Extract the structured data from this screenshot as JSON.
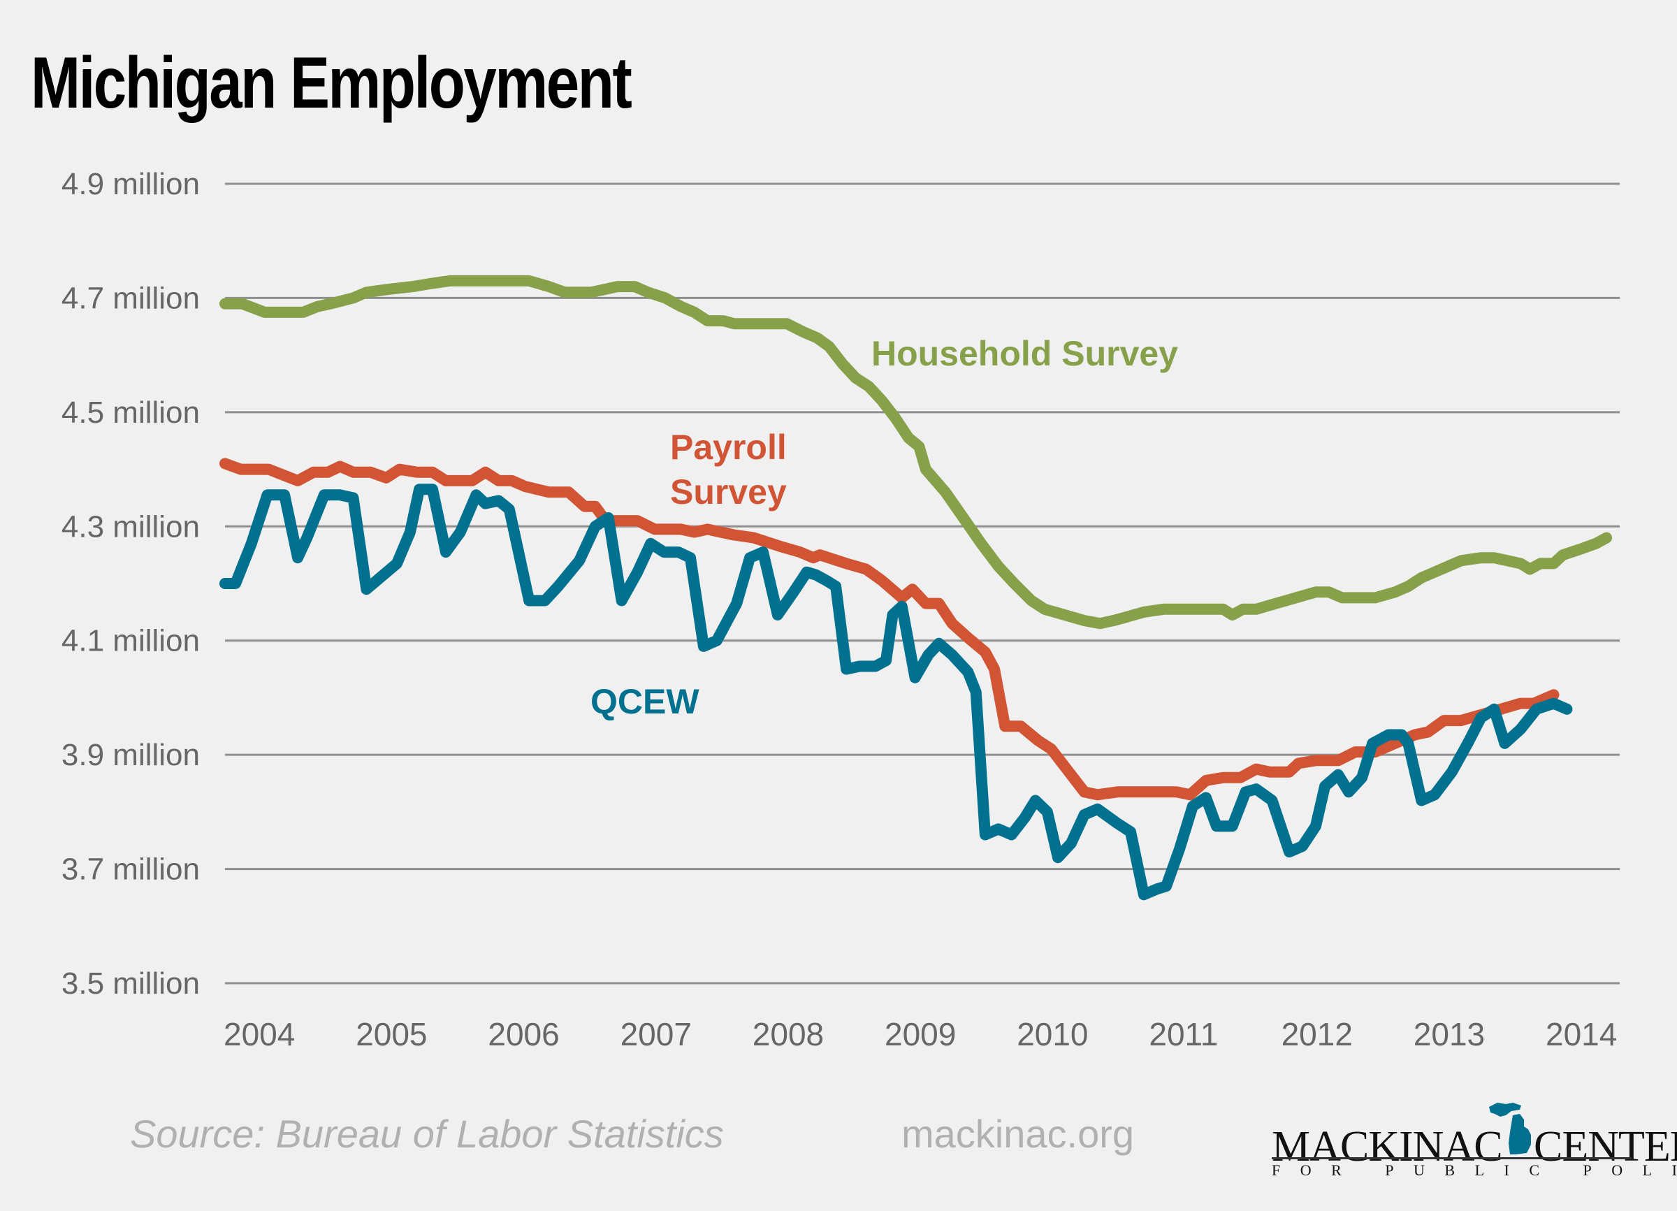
{
  "title": "Michigan Employment",
  "footer": {
    "source": "Source: Bureau of Labor Statistics",
    "site": "mackinac.org",
    "logo_line1_left": "MACKINAC",
    "logo_line1_right": "CENTER",
    "logo_line2": "FOR PUBLIC POLICY",
    "logo_icon": "michigan-map-icon"
  },
  "colors": {
    "background": "#f0f0f0",
    "household": "#87a14b",
    "payroll": "#d15435",
    "qcew": "#02718f",
    "grid": "#8f8f8f",
    "tick_text": "#666666",
    "footer_text": "#b0b0b0"
  },
  "chart_data": {
    "type": "line",
    "title": "Michigan Employment",
    "xlabel": "",
    "ylabel": "",
    "xlim": [
      2004,
      2014.55
    ],
    "ylim": [
      3.5,
      4.9
    ],
    "grid": true,
    "yticks": [
      4.9,
      4.7,
      4.5,
      4.3,
      4.1,
      3.9,
      3.7,
      3.5
    ],
    "ytick_labels": [
      "4.9 million",
      "4.7 million",
      "4.5 million",
      "4.3 million",
      "4.1 million",
      "3.9 million",
      "3.7 million",
      "3.5 million"
    ],
    "xticks": [
      2004,
      2005,
      2006,
      2007,
      2008,
      2009,
      2010,
      2011,
      2012,
      2013,
      2014
    ],
    "xtick_labels": [
      "2004",
      "2005",
      "2006",
      "2007",
      "2008",
      "2009",
      "2010",
      "2011",
      "2012",
      "2013",
      "2014"
    ],
    "legend": "inline-labels",
    "series": [
      {
        "name": "Household Survey",
        "label_lines": [
          "Household Survey"
        ],
        "color": "#87a14b",
        "points": [
          [
            2004.0,
            4.69
          ],
          [
            2004.13,
            4.69
          ],
          [
            2004.3,
            4.675
          ],
          [
            2004.59,
            4.675
          ],
          [
            2004.7,
            4.685
          ],
          [
            2004.8,
            4.69
          ],
          [
            2004.97,
            4.7
          ],
          [
            2005.07,
            4.71
          ],
          [
            2005.23,
            4.715
          ],
          [
            2005.42,
            4.72
          ],
          [
            2005.55,
            4.725
          ],
          [
            2005.7,
            4.73
          ],
          [
            2006.3,
            4.73
          ],
          [
            2006.45,
            4.72
          ],
          [
            2006.57,
            4.71
          ],
          [
            2006.77,
            4.71
          ],
          [
            2006.97,
            4.72
          ],
          [
            2007.1,
            4.72
          ],
          [
            2007.2,
            4.71
          ],
          [
            2007.33,
            4.7
          ],
          [
            2007.45,
            4.685
          ],
          [
            2007.55,
            4.675
          ],
          [
            2007.65,
            4.66
          ],
          [
            2007.77,
            4.66
          ],
          [
            2007.85,
            4.655
          ],
          [
            2008.25,
            4.655
          ],
          [
            2008.38,
            4.64
          ],
          [
            2008.48,
            4.63
          ],
          [
            2008.57,
            4.615
          ],
          [
            2008.67,
            4.585
          ],
          [
            2008.77,
            4.56
          ],
          [
            2008.87,
            4.545
          ],
          [
            2008.97,
            4.52
          ],
          [
            2009.07,
            4.49
          ],
          [
            2009.17,
            4.455
          ],
          [
            2009.25,
            4.44
          ],
          [
            2009.3,
            4.4
          ],
          [
            2009.45,
            4.36
          ],
          [
            2009.57,
            4.32
          ],
          [
            2009.72,
            4.27
          ],
          [
            2009.85,
            4.23
          ],
          [
            2009.97,
            4.2
          ],
          [
            2010.1,
            4.17
          ],
          [
            2010.2,
            4.155
          ],
          [
            2010.35,
            4.145
          ],
          [
            2010.5,
            4.135
          ],
          [
            2010.62,
            4.13
          ],
          [
            2010.72,
            4.135
          ],
          [
            2010.8,
            4.14
          ],
          [
            2010.95,
            4.15
          ],
          [
            2011.1,
            4.155
          ],
          [
            2011.4,
            4.155
          ],
          [
            2011.55,
            4.155
          ],
          [
            2011.62,
            4.145
          ],
          [
            2011.7,
            4.155
          ],
          [
            2011.8,
            4.155
          ],
          [
            2011.95,
            4.165
          ],
          [
            2012.1,
            4.175
          ],
          [
            2012.25,
            4.185
          ],
          [
            2012.35,
            4.185
          ],
          [
            2012.45,
            4.175
          ],
          [
            2012.7,
            4.175
          ],
          [
            2012.85,
            4.185
          ],
          [
            2012.95,
            4.195
          ],
          [
            2013.05,
            4.21
          ],
          [
            2013.15,
            4.22
          ],
          [
            2013.25,
            4.23
          ],
          [
            2013.35,
            4.24
          ],
          [
            2013.5,
            4.245
          ],
          [
            2013.6,
            4.245
          ],
          [
            2013.7,
            4.24
          ],
          [
            2013.8,
            4.235
          ],
          [
            2013.87,
            4.225
          ],
          [
            2013.95,
            4.235
          ],
          [
            2014.05,
            4.235
          ],
          [
            2014.12,
            4.25
          ],
          [
            2014.25,
            4.26
          ],
          [
            2014.37,
            4.27
          ],
          [
            2014.45,
            4.28
          ]
        ]
      },
      {
        "name": "Payroll Survey",
        "label_lines": [
          "Payroll",
          "Survey"
        ],
        "color": "#d15435",
        "points": [
          [
            2004.0,
            4.41
          ],
          [
            2004.12,
            4.4
          ],
          [
            2004.33,
            4.4
          ],
          [
            2004.55,
            4.38
          ],
          [
            2004.67,
            4.395
          ],
          [
            2004.78,
            4.395
          ],
          [
            2004.87,
            4.405
          ],
          [
            2004.97,
            4.395
          ],
          [
            2005.1,
            4.395
          ],
          [
            2005.22,
            4.385
          ],
          [
            2005.32,
            4.4
          ],
          [
            2005.45,
            4.395
          ],
          [
            2005.57,
            4.395
          ],
          [
            2005.67,
            4.38
          ],
          [
            2005.87,
            4.38
          ],
          [
            2005.97,
            4.395
          ],
          [
            2006.07,
            4.38
          ],
          [
            2006.17,
            4.38
          ],
          [
            2006.27,
            4.37
          ],
          [
            2006.45,
            4.36
          ],
          [
            2006.6,
            4.36
          ],
          [
            2006.72,
            4.335
          ],
          [
            2006.8,
            4.335
          ],
          [
            2006.88,
            4.31
          ],
          [
            2007.12,
            4.31
          ],
          [
            2007.25,
            4.295
          ],
          [
            2007.45,
            4.295
          ],
          [
            2007.55,
            4.29
          ],
          [
            2007.65,
            4.295
          ],
          [
            2007.75,
            4.29
          ],
          [
            2007.85,
            4.285
          ],
          [
            2008.0,
            4.28
          ],
          [
            2008.2,
            4.265
          ],
          [
            2008.35,
            4.255
          ],
          [
            2008.45,
            4.245
          ],
          [
            2008.5,
            4.25
          ],
          [
            2008.7,
            4.235
          ],
          [
            2008.85,
            4.225
          ],
          [
            2008.97,
            4.205
          ],
          [
            2009.12,
            4.175
          ],
          [
            2009.2,
            4.19
          ],
          [
            2009.3,
            4.165
          ],
          [
            2009.4,
            4.165
          ],
          [
            2009.5,
            4.13
          ],
          [
            2009.62,
            4.105
          ],
          [
            2009.75,
            4.08
          ],
          [
            2009.82,
            4.05
          ],
          [
            2009.9,
            3.95
          ],
          [
            2010.02,
            3.95
          ],
          [
            2010.15,
            3.925
          ],
          [
            2010.25,
            3.91
          ],
          [
            2010.35,
            3.88
          ],
          [
            2010.5,
            3.835
          ],
          [
            2010.6,
            3.83
          ],
          [
            2010.75,
            3.835
          ],
          [
            2011.0,
            3.835
          ],
          [
            2011.2,
            3.835
          ],
          [
            2011.3,
            3.83
          ],
          [
            2011.42,
            3.855
          ],
          [
            2011.55,
            3.86
          ],
          [
            2011.68,
            3.86
          ],
          [
            2011.8,
            3.875
          ],
          [
            2011.9,
            3.87
          ],
          [
            2012.05,
            3.87
          ],
          [
            2012.12,
            3.885
          ],
          [
            2012.25,
            3.89
          ],
          [
            2012.42,
            3.89
          ],
          [
            2012.55,
            3.905
          ],
          [
            2012.7,
            3.905
          ],
          [
            2012.85,
            3.92
          ],
          [
            2013.0,
            3.935
          ],
          [
            2013.1,
            3.94
          ],
          [
            2013.22,
            3.96
          ],
          [
            2013.35,
            3.96
          ],
          [
            2013.5,
            3.97
          ],
          [
            2013.65,
            3.98
          ],
          [
            2013.8,
            3.99
          ],
          [
            2013.9,
            3.99
          ],
          [
            2014.05,
            4.005
          ]
        ]
      },
      {
        "name": "QCEW",
        "label_lines": [
          "QCEW"
        ],
        "color": "#02718f",
        "points": [
          [
            2004.0,
            4.2
          ],
          [
            2004.08,
            4.2
          ],
          [
            2004.2,
            4.27
          ],
          [
            2004.32,
            4.355
          ],
          [
            2004.45,
            4.355
          ],
          [
            2004.55,
            4.245
          ],
          [
            2004.62,
            4.28
          ],
          [
            2004.75,
            4.355
          ],
          [
            2004.87,
            4.355
          ],
          [
            2004.97,
            4.35
          ],
          [
            2005.07,
            4.19
          ],
          [
            2005.3,
            4.235
          ],
          [
            2005.4,
            4.29
          ],
          [
            2005.47,
            4.365
          ],
          [
            2005.57,
            4.365
          ],
          [
            2005.67,
            4.255
          ],
          [
            2005.78,
            4.29
          ],
          [
            2005.9,
            4.355
          ],
          [
            2005.97,
            4.34
          ],
          [
            2006.07,
            4.345
          ],
          [
            2006.15,
            4.33
          ],
          [
            2006.3,
            4.17
          ],
          [
            2006.42,
            4.17
          ],
          [
            2006.52,
            4.195
          ],
          [
            2006.68,
            4.24
          ],
          [
            2006.8,
            4.3
          ],
          [
            2006.9,
            4.315
          ],
          [
            2007.0,
            4.17
          ],
          [
            2007.12,
            4.22
          ],
          [
            2007.22,
            4.27
          ],
          [
            2007.32,
            4.255
          ],
          [
            2007.43,
            4.255
          ],
          [
            2007.52,
            4.245
          ],
          [
            2007.62,
            4.09
          ],
          [
            2007.72,
            4.1
          ],
          [
            2007.87,
            4.165
          ],
          [
            2007.97,
            4.245
          ],
          [
            2008.07,
            4.255
          ],
          [
            2008.18,
            4.145
          ],
          [
            2008.3,
            4.185
          ],
          [
            2008.4,
            4.22
          ],
          [
            2008.47,
            4.215
          ],
          [
            2008.55,
            4.205
          ],
          [
            2008.62,
            4.195
          ],
          [
            2008.7,
            4.05
          ],
          [
            2008.8,
            4.055
          ],
          [
            2008.92,
            4.055
          ],
          [
            2009.0,
            4.065
          ],
          [
            2009.05,
            4.145
          ],
          [
            2009.12,
            4.16
          ],
          [
            2009.22,
            4.035
          ],
          [
            2009.32,
            4.075
          ],
          [
            2009.4,
            4.095
          ],
          [
            2009.5,
            4.075
          ],
          [
            2009.62,
            4.045
          ],
          [
            2009.68,
            4.01
          ],
          [
            2009.75,
            3.76
          ],
          [
            2009.85,
            3.77
          ],
          [
            2009.95,
            3.76
          ],
          [
            2010.05,
            3.79
          ],
          [
            2010.13,
            3.82
          ],
          [
            2010.22,
            3.8
          ],
          [
            2010.3,
            3.72
          ],
          [
            2010.4,
            3.745
          ],
          [
            2010.5,
            3.795
          ],
          [
            2010.6,
            3.805
          ],
          [
            2010.75,
            3.78
          ],
          [
            2010.85,
            3.765
          ],
          [
            2010.95,
            3.655
          ],
          [
            2011.05,
            3.665
          ],
          [
            2011.12,
            3.67
          ],
          [
            2011.22,
            3.735
          ],
          [
            2011.32,
            3.81
          ],
          [
            2011.42,
            3.825
          ],
          [
            2011.5,
            3.775
          ],
          [
            2011.62,
            3.775
          ],
          [
            2011.72,
            3.835
          ],
          [
            2011.8,
            3.84
          ],
          [
            2011.92,
            3.82
          ],
          [
            2012.05,
            3.73
          ],
          [
            2012.15,
            3.74
          ],
          [
            2012.25,
            3.775
          ],
          [
            2012.32,
            3.845
          ],
          [
            2012.42,
            3.865
          ],
          [
            2012.5,
            3.835
          ],
          [
            2012.6,
            3.86
          ],
          [
            2012.68,
            3.92
          ],
          [
            2012.8,
            3.935
          ],
          [
            2012.9,
            3.935
          ],
          [
            2012.95,
            3.92
          ],
          [
            2013.05,
            3.82
          ],
          [
            2013.15,
            3.83
          ],
          [
            2013.28,
            3.87
          ],
          [
            2013.4,
            3.92
          ],
          [
            2013.5,
            3.965
          ],
          [
            2013.6,
            3.98
          ],
          [
            2013.68,
            3.92
          ],
          [
            2013.8,
            3.945
          ],
          [
            2013.92,
            3.98
          ],
          [
            2014.05,
            3.99
          ],
          [
            2014.15,
            3.98
          ]
        ]
      }
    ]
  }
}
